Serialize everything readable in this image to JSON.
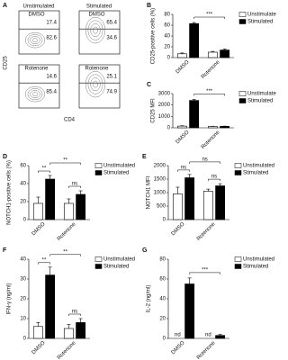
{
  "panel_a": {
    "label": "A",
    "columns": [
      "Unstimulated",
      "Stimulated"
    ],
    "rows": [
      "DMSO",
      "Rotenone"
    ],
    "y_axis": "CD25",
    "x_axis": "CD4",
    "percentages": [
      [
        [
          17.4,
          82.6
        ],
        [
          65.4,
          34.6
        ]
      ],
      [
        [
          14.6,
          85.4
        ],
        [
          25.1,
          74.9
        ]
      ]
    ]
  },
  "chart_data": [
    {
      "type": "bar",
      "label": "B",
      "ylabel": "CD25-positive cells (%)",
      "categories": [
        "DMSO",
        "Rotenone"
      ],
      "series": [
        {
          "name": "Unstimulated",
          "color": "#ffffff",
          "values": [
            7,
            10
          ],
          "errors": [
            1.5,
            1.5
          ]
        },
        {
          "name": "Stimulated",
          "color": "#000000",
          "values": [
            63,
            14
          ],
          "errors": [
            2,
            2
          ]
        }
      ],
      "ylim": [
        0,
        80
      ],
      "yticks": [
        0,
        20,
        40,
        60,
        80
      ],
      "annotations": [
        "***"
      ]
    },
    {
      "type": "bar",
      "label": "C",
      "ylabel": "CD25 MFI",
      "categories": [
        "DMSO",
        "Rotenone"
      ],
      "series": [
        {
          "name": "Unstimulated",
          "color": "#ffffff",
          "values": [
            150,
            120
          ],
          "errors": [
            30,
            20
          ]
        },
        {
          "name": "Stimulated",
          "color": "#000000",
          "values": [
            2400,
            130
          ],
          "errors": [
            90,
            20
          ]
        }
      ],
      "ylim": [
        0,
        3000
      ],
      "yticks": [
        0,
        1000,
        2000,
        3000
      ],
      "annotations": [
        "***"
      ]
    },
    {
      "type": "bar",
      "label": "D",
      "ylabel": "NOTCH1-positive cells (%)",
      "categories": [
        "DMSO",
        "Rotenone"
      ],
      "series": [
        {
          "name": "Unstimulated",
          "color": "#ffffff",
          "values": [
            18,
            18
          ],
          "errors": [
            7,
            5
          ]
        },
        {
          "name": "Stimulated",
          "color": "#000000",
          "values": [
            45,
            28
          ],
          "errors": [
            4,
            4
          ]
        }
      ],
      "ylim": [
        0,
        60
      ],
      "yticks": [
        0,
        20,
        40,
        60
      ],
      "annotations": [
        "**",
        "**",
        "ns"
      ]
    },
    {
      "type": "bar",
      "label": "E",
      "ylabel": "NOTCH1 MFI",
      "categories": [
        "DMSO",
        "Rotenone"
      ],
      "series": [
        {
          "name": "Unstimulated",
          "color": "#ffffff",
          "values": [
            950,
            1050
          ],
          "errors": [
            250,
            80
          ]
        },
        {
          "name": "Stimulated",
          "color": "#000000",
          "values": [
            1550,
            1250
          ],
          "errors": [
            120,
            80
          ]
        }
      ],
      "ylim": [
        0,
        2000
      ],
      "yticks": [
        0,
        500,
        1000,
        1500,
        2000
      ],
      "annotations": [
        "ns",
        "ns",
        "ns"
      ]
    },
    {
      "type": "bar",
      "label": "F",
      "ylabel": "IFN-γ (ng/ml)",
      "categories": [
        "DMSO",
        "Rotenone"
      ],
      "series": [
        {
          "name": "Unstimulated",
          "color": "#ffffff",
          "values": [
            6,
            5
          ],
          "errors": [
            2,
            2
          ]
        },
        {
          "name": "Stimulated",
          "color": "#000000",
          "values": [
            32,
            8
          ],
          "errors": [
            4,
            2
          ]
        }
      ],
      "ylim": [
        0,
        40
      ],
      "yticks": [
        0,
        10,
        20,
        30,
        40
      ],
      "annotations": [
        "**",
        "**",
        "ns"
      ]
    },
    {
      "type": "bar",
      "label": "G",
      "ylabel": "IL-2 (ng/ml)",
      "categories": [
        "DMSO",
        "Rotenone"
      ],
      "series": [
        {
          "name": "Unstimulated",
          "color": "#ffffff",
          "values": [
            null,
            null
          ],
          "value_labels": [
            "nd",
            "nd"
          ]
        },
        {
          "name": "Stimulated",
          "color": "#000000",
          "values": [
            55,
            3
          ],
          "errors": [
            6,
            1
          ]
        }
      ],
      "ylim": [
        0,
        80
      ],
      "yticks": [
        0,
        20,
        40,
        60,
        80
      ],
      "annotations": [
        "***"
      ]
    }
  ]
}
